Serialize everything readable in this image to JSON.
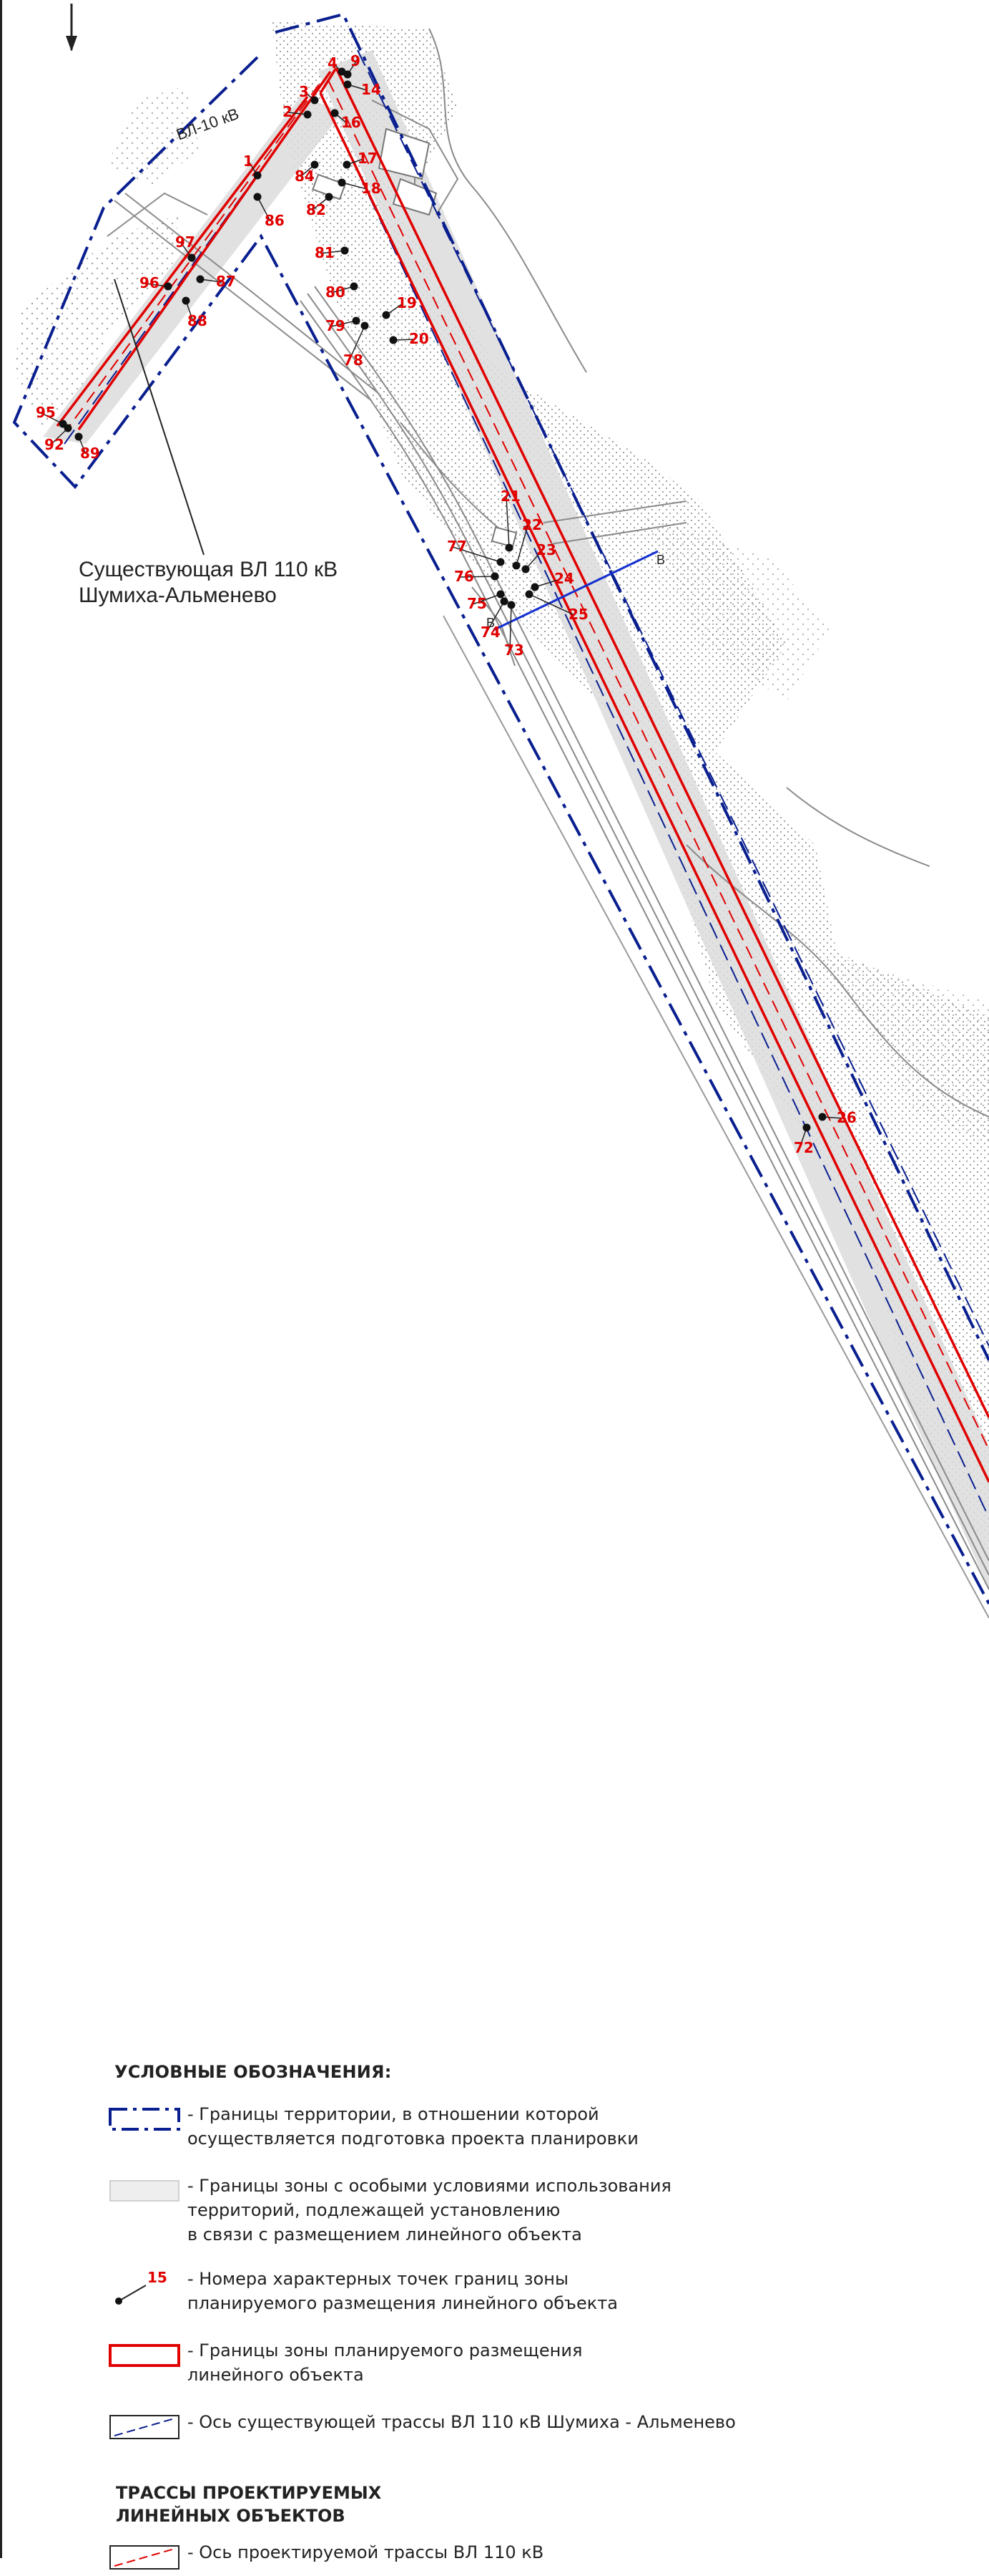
{
  "map": {
    "line_labels": {
      "vl10": "ВЛ-10 кВ",
      "existing_line": "Существующая ВЛ 110 кВ\nШумиха-Альменево"
    },
    "section_mark": "В",
    "north_arrow": "north-arrow",
    "points": [
      "1",
      "2",
      "3",
      "4",
      "9",
      "14",
      "16",
      "17",
      "18",
      "19",
      "20",
      "21",
      "22",
      "23",
      "24",
      "25",
      "26",
      "72",
      "73",
      "74",
      "75",
      "76",
      "77",
      "78",
      "79",
      "80",
      "81",
      "82",
      "84",
      "86",
      "87",
      "88",
      "89",
      "92",
      "95",
      "96",
      "97"
    ]
  },
  "legend": {
    "title": "УСЛОВНЫЕ ОБОЗНАЧЕНИЯ:",
    "items": [
      {
        "symbol": "blue-dashdot-boundary",
        "text": "- Границы территории, в отношении которой\n  осуществляется подготовка проекта планировки"
      },
      {
        "symbol": "grey-zone-fill",
        "text": "- Границы зоны с особыми условиями использования\n  территорий, подлежащей установлению\n  в связи с размещением линейного объекта"
      },
      {
        "symbol": "point-marker",
        "marker_label": "15",
        "text": "- Номера характерных точек границ зоны\n  планируемого размещения линейного объекта"
      },
      {
        "symbol": "red-outline",
        "text": "- Границы зоны планируемого размещения\n  линейного объекта"
      },
      {
        "symbol": "blue-dashed-axis",
        "text": "- Ось существующей трассы ВЛ 110 кВ Шумиха - Альменево"
      }
    ],
    "subtitle": "ТРАССЫ ПРОЕКТИРУЕМЫХ\nЛИНЕЙНЫХ ОБЪЕКТОВ",
    "sub_items": [
      {
        "symbol": "red-dashed-axis",
        "text": "- Ось проектируемой трассы ВЛ 110 кВ"
      }
    ]
  },
  "colors": {
    "red": "#e00000",
    "blue": "#0a1f8f",
    "grey_zone": "#dcdcdc"
  }
}
